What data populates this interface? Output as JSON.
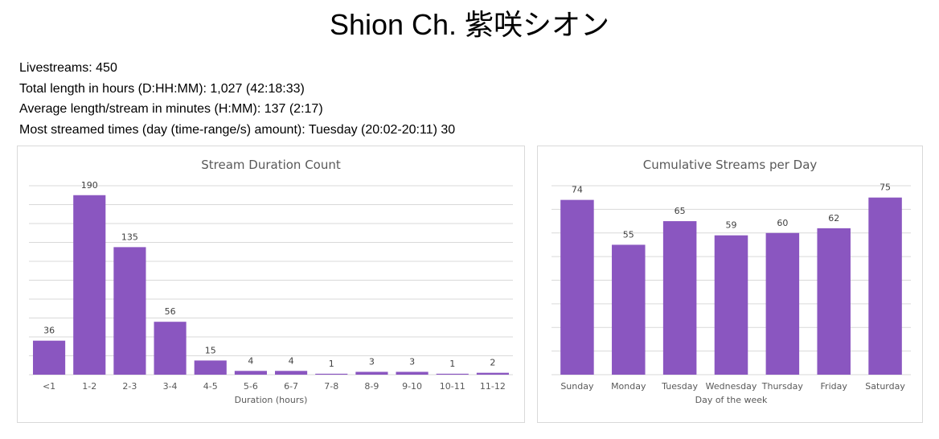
{
  "page": {
    "title": "Shion Ch. 紫咲シオン",
    "stats": [
      "Livestreams: 450",
      "Total length in hours (D:HH:MM): 1,027 (42:18:33)",
      "Average length/stream in minutes (H:MM): 137 (2:17)",
      "Most streamed times (day (time-range/s) amount): Tuesday (20:02-20:11) 30"
    ]
  },
  "chart_data": [
    {
      "type": "bar",
      "title": "Stream Duration Count",
      "xlabel": "Duration (hours)",
      "ylabel": "",
      "categories": [
        "<1",
        "1-2",
        "2-3",
        "3-4",
        "4-5",
        "5-6",
        "6-7",
        "7-8",
        "8-9",
        "9-10",
        "10-11",
        "11-12"
      ],
      "values": [
        36,
        190,
        135,
        56,
        15,
        4,
        4,
        1,
        3,
        3,
        1,
        2
      ],
      "ylim": [
        0,
        200
      ],
      "grid": true,
      "data_labels": true,
      "color": "#8a56c0"
    },
    {
      "type": "bar",
      "title": "Cumulative Streams per Day",
      "xlabel": "Day of the week",
      "ylabel": "",
      "categories": [
        "Sunday",
        "Monday",
        "Tuesday",
        "Wednesday",
        "Thursday",
        "Friday",
        "Saturday"
      ],
      "values": [
        74,
        55,
        65,
        59,
        60,
        62,
        75
      ],
      "ylim": [
        0,
        80
      ],
      "grid": true,
      "data_labels": true,
      "color": "#8a56c0"
    }
  ]
}
